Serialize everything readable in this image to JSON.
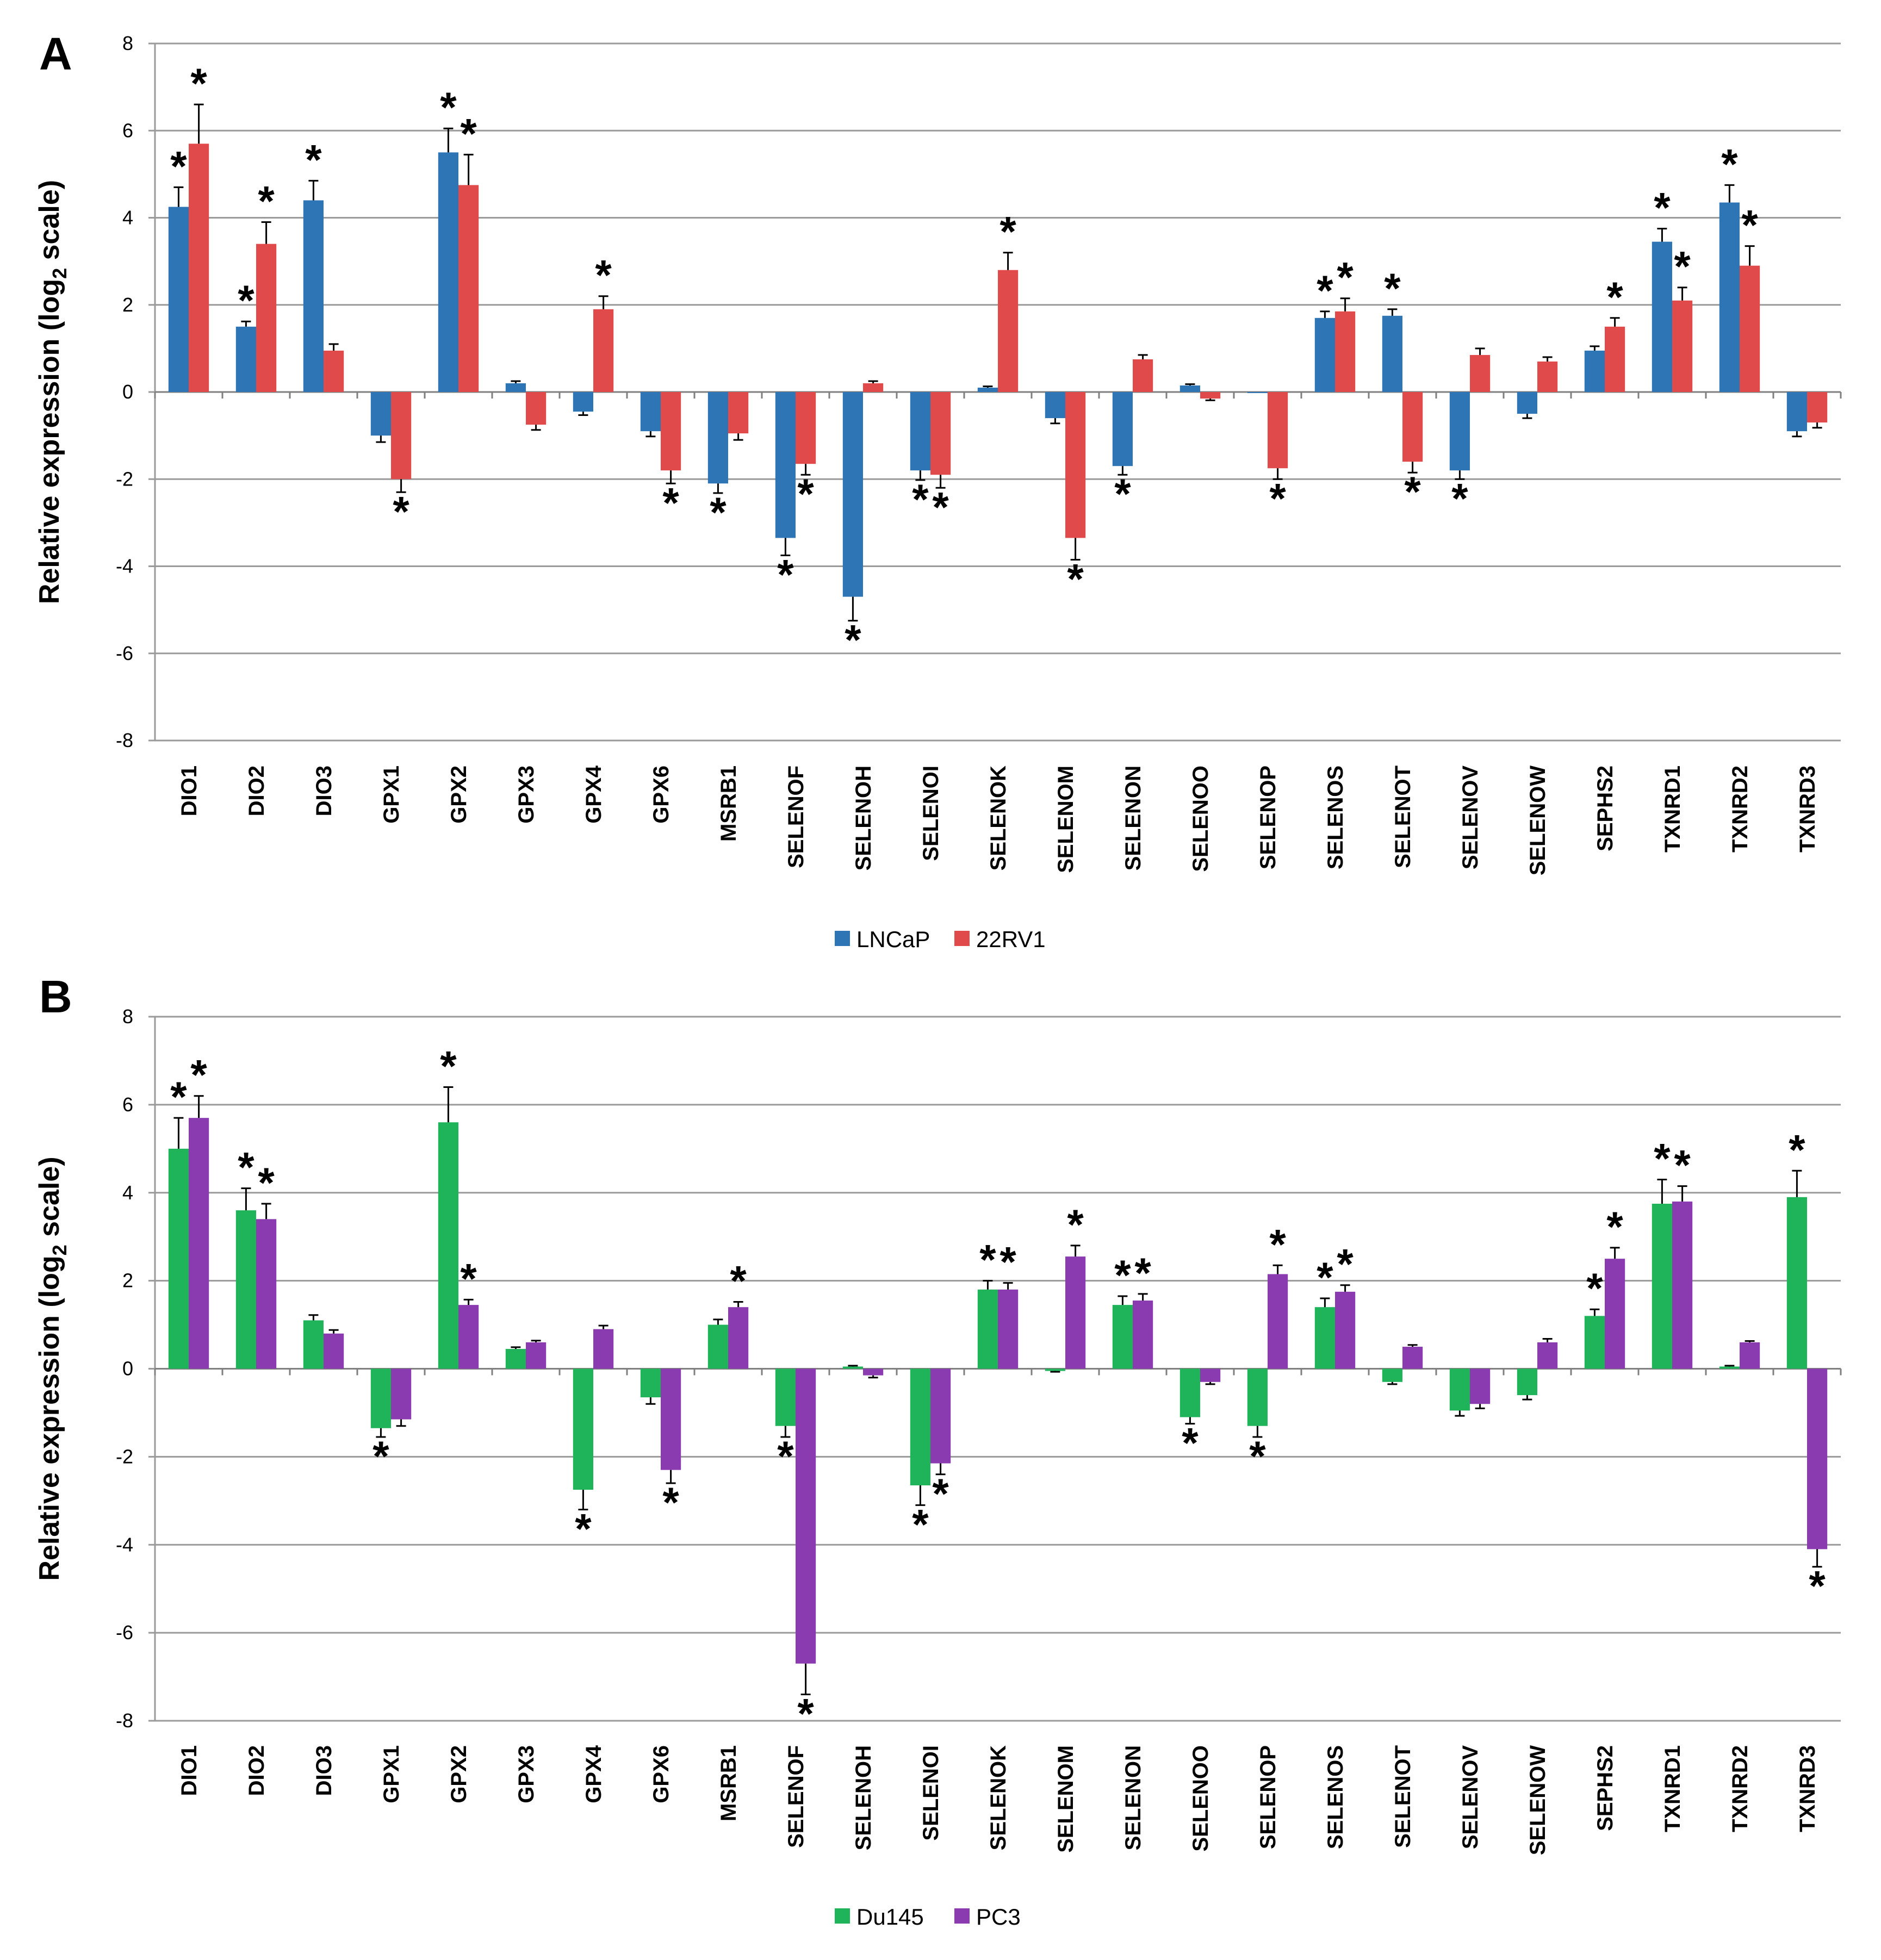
{
  "chart_data": [
    {
      "type": "bar",
      "panel_label": "A",
      "ylabel_main": "Relative expression  (log",
      "ylabel_sub": "2",
      "ylabel_end": " scale)",
      "ylim": [
        -8,
        8
      ],
      "yticks": [
        8,
        6,
        4,
        2,
        0,
        -2,
        -4,
        -6,
        -8
      ],
      "grid": true,
      "legend_position": "bottom-center",
      "categories": [
        "DIO1",
        "DIO2",
        "DIO3",
        "GPX1",
        "GPX2",
        "GPX3",
        "GPX4",
        "GPX6",
        "MSRB1",
        "SELENOF",
        "SELENOH",
        "SELENOI",
        "SELENOK",
        "SELENOM",
        "SELENON",
        "SELENOO",
        "SELENOP",
        "SELENOS",
        "SELENOT",
        "SELENOV",
        "SELENOW",
        "SEPHS2",
        "TXNRD1",
        "TXNRD2",
        "TXNRD3"
      ],
      "series": [
        {
          "name": "LNCaP",
          "color": "#2E75B6",
          "values": [
            4.25,
            1.5,
            4.4,
            -1.0,
            5.5,
            0.2,
            -0.45,
            -0.9,
            -2.1,
            -3.35,
            -4.7,
            -1.8,
            0.1,
            -0.6,
            -1.7,
            0.15,
            0.0,
            1.7,
            1.75,
            -1.8,
            -0.5,
            0.95,
            3.45,
            4.35,
            -0.9
          ],
          "errors": [
            0.45,
            0.12,
            0.45,
            0.15,
            0.55,
            0.05,
            0.08,
            0.12,
            0.22,
            0.4,
            0.55,
            0.22,
            0.03,
            0.12,
            0.2,
            0.03,
            0.0,
            0.15,
            0.15,
            0.2,
            0.1,
            0.1,
            0.3,
            0.4,
            0.12
          ],
          "significant": [
            true,
            true,
            true,
            false,
            true,
            false,
            false,
            false,
            true,
            true,
            true,
            true,
            false,
            false,
            true,
            false,
            false,
            true,
            true,
            true,
            false,
            false,
            true,
            true,
            false
          ]
        },
        {
          "name": "22RV1",
          "color": "#E04A4A",
          "values": [
            5.7,
            3.4,
            0.95,
            -2.0,
            4.75,
            -0.75,
            1.9,
            -1.8,
            -0.95,
            -1.65,
            0.2,
            -1.9,
            2.8,
            -3.35,
            0.75,
            -0.15,
            -1.75,
            1.85,
            -1.6,
            0.85,
            0.7,
            1.5,
            2.1,
            2.9,
            -0.7
          ],
          "errors": [
            0.9,
            0.5,
            0.15,
            0.3,
            0.7,
            0.12,
            0.3,
            0.3,
            0.15,
            0.25,
            0.05,
            0.3,
            0.4,
            0.5,
            0.1,
            0.04,
            0.25,
            0.3,
            0.25,
            0.15,
            0.1,
            0.2,
            0.3,
            0.45,
            0.12
          ],
          "significant": [
            true,
            true,
            false,
            true,
            true,
            false,
            true,
            true,
            false,
            true,
            false,
            true,
            true,
            true,
            false,
            false,
            true,
            true,
            true,
            false,
            false,
            true,
            true,
            true,
            false
          ]
        }
      ]
    },
    {
      "type": "bar",
      "panel_label": "B",
      "ylabel_main": "Relative expression  (log",
      "ylabel_sub": "2",
      "ylabel_end": " scale)",
      "ylim": [
        -8,
        8
      ],
      "yticks": [
        8,
        6,
        4,
        2,
        0,
        -2,
        -4,
        -6,
        -8
      ],
      "grid": true,
      "legend_position": "bottom-center",
      "categories": [
        "DIO1",
        "DIO2",
        "DIO3",
        "GPX1",
        "GPX2",
        "GPX3",
        "GPX4",
        "GPX6",
        "MSRB1",
        "SELENOF",
        "SELENOH",
        "SELENOI",
        "SELENOK",
        "SELENOM",
        "SELENON",
        "SELENOO",
        "SELENOP",
        "SELENOS",
        "SELENOT",
        "SELENOV",
        "SELENOW",
        "SEPHS2",
        "TXNRD1",
        "TXNRD2",
        "TXNRD3"
      ],
      "series": [
        {
          "name": "Du145",
          "color": "#1FB35A",
          "values": [
            5.0,
            3.6,
            1.1,
            -1.35,
            5.6,
            0.45,
            -2.75,
            -0.65,
            1.0,
            -1.3,
            0.05,
            -2.65,
            1.8,
            -0.05,
            1.45,
            -1.1,
            -1.3,
            1.4,
            -0.3,
            -0.95,
            -0.6,
            1.2,
            3.75,
            0.05,
            3.9
          ],
          "errors": [
            0.7,
            0.5,
            0.12,
            0.2,
            0.8,
            0.04,
            0.45,
            0.15,
            0.12,
            0.25,
            0.02,
            0.45,
            0.2,
            0.02,
            0.2,
            0.15,
            0.25,
            0.2,
            0.05,
            0.12,
            0.1,
            0.15,
            0.55,
            0.02,
            0.6
          ],
          "significant": [
            true,
            true,
            false,
            true,
            true,
            false,
            true,
            false,
            false,
            true,
            false,
            true,
            true,
            false,
            true,
            true,
            true,
            true,
            false,
            false,
            false,
            true,
            true,
            false,
            true
          ]
        },
        {
          "name": "PC3",
          "color": "#8A3BB0",
          "values": [
            5.7,
            3.4,
            0.8,
            -1.15,
            1.45,
            0.6,
            0.9,
            -2.3,
            1.4,
            -6.7,
            -0.15,
            -2.15,
            1.8,
            2.55,
            1.55,
            -0.3,
            2.15,
            1.75,
            0.5,
            -0.8,
            0.6,
            2.5,
            3.8,
            0.6,
            -4.1
          ],
          "errors": [
            0.5,
            0.35,
            0.08,
            0.15,
            0.12,
            0.04,
            0.08,
            0.3,
            0.12,
            0.7,
            0.05,
            0.25,
            0.15,
            0.25,
            0.15,
            0.05,
            0.2,
            0.15,
            0.04,
            0.1,
            0.08,
            0.25,
            0.35,
            0.03,
            0.4
          ],
          "significant": [
            true,
            true,
            false,
            false,
            true,
            false,
            false,
            true,
            true,
            true,
            false,
            true,
            true,
            true,
            true,
            false,
            true,
            true,
            false,
            false,
            false,
            true,
            true,
            false,
            true
          ]
        }
      ]
    }
  ],
  "significance_marker": "*"
}
